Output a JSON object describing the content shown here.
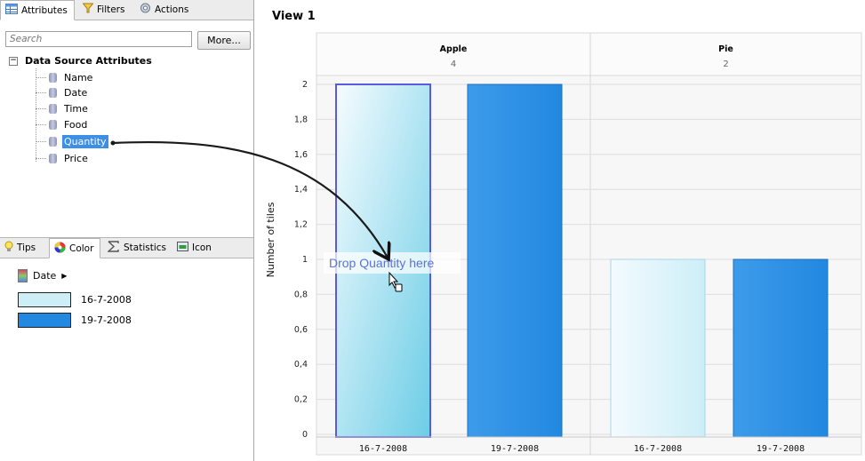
{
  "top_tabs": [
    {
      "label": "Attributes",
      "icon": "table-icon",
      "active": true
    },
    {
      "label": "Filters",
      "icon": "funnel-icon",
      "active": false
    },
    {
      "label": "Actions",
      "icon": "gears-icon",
      "active": false
    }
  ],
  "search": {
    "placeholder": "Search",
    "more_label": "More..."
  },
  "tree": {
    "root_label": "Data Source Attributes",
    "items": [
      {
        "label": "Name",
        "selected": false
      },
      {
        "label": "Date",
        "selected": false
      },
      {
        "label": "Time",
        "selected": false
      },
      {
        "label": "Food",
        "selected": false
      },
      {
        "label": "Quantity",
        "selected": true
      },
      {
        "label": "Price",
        "selected": false
      }
    ]
  },
  "bottom_tabs": [
    {
      "label": "Tips",
      "icon": "lightbulb-icon",
      "active": false
    },
    {
      "label": "Color",
      "icon": "color-wheel-icon",
      "active": true
    },
    {
      "label": "Statistics",
      "icon": "sigma-icon",
      "active": false
    },
    {
      "label": "Icon",
      "icon": "image-icon",
      "active": false
    }
  ],
  "legend": {
    "attribute": "Date",
    "entries": [
      {
        "label": "16-7-2008",
        "color": "#cdeef7"
      },
      {
        "label": "19-7-2008",
        "color": "#2288e0"
      }
    ]
  },
  "view": {
    "title": "View 1",
    "drop_hint": "Drop Quantity here"
  },
  "chart_data": {
    "type": "bar",
    "ylabel": "Number of tiles",
    "ylim": [
      0,
      2
    ],
    "yticks": [
      "0",
      "0,2",
      "0,4",
      "0,6",
      "0,8",
      "1",
      "1,2",
      "1,4",
      "1,6",
      "1,8",
      "2"
    ],
    "grid": true,
    "groups": [
      {
        "name": "Apple",
        "count": "4",
        "categories": [
          "16-7-2008",
          "19-7-2008"
        ],
        "values": [
          2,
          2
        ]
      },
      {
        "name": "Pie",
        "count": "2",
        "categories": [
          "16-7-2008",
          "19-7-2008"
        ],
        "values": [
          1,
          1
        ]
      }
    ],
    "colors": {
      "16-7-2008": "#cdeef7",
      "19-7-2008": "#2288e0"
    }
  }
}
